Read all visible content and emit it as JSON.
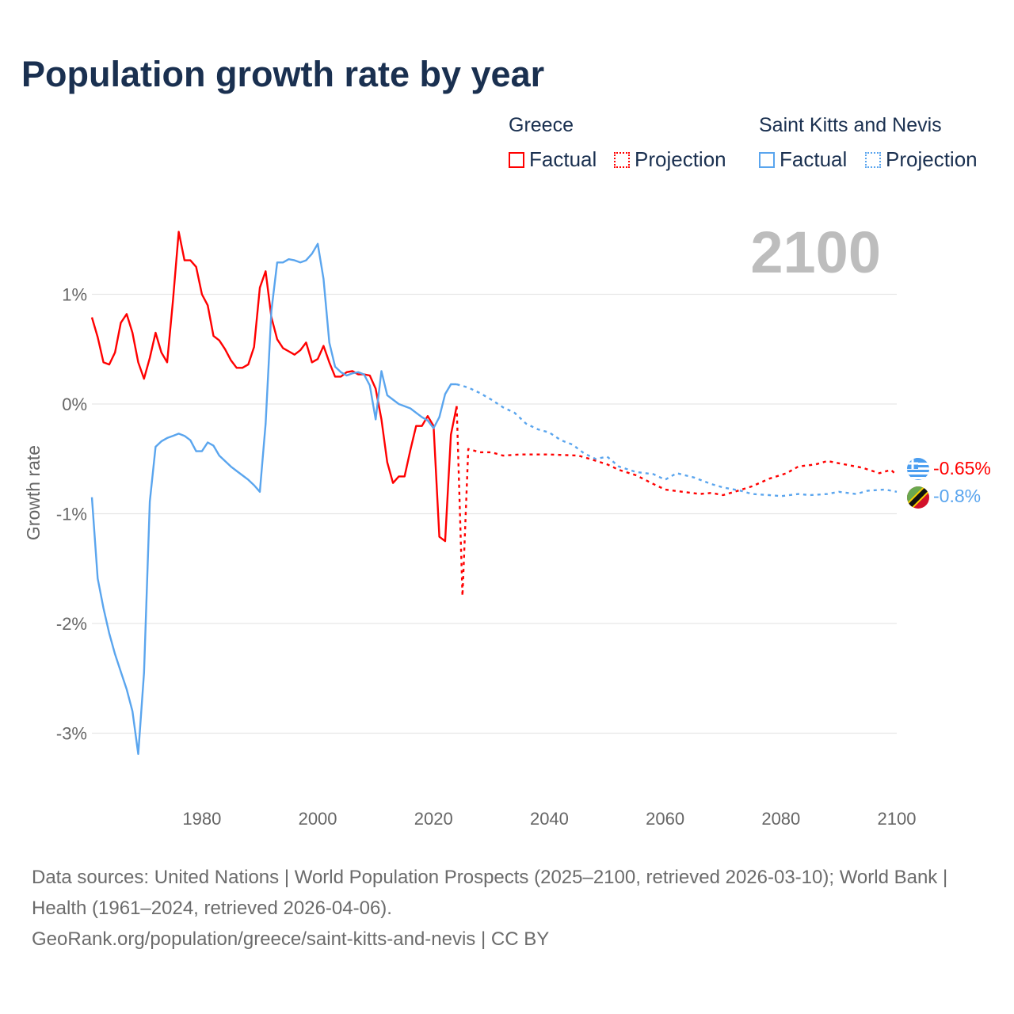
{
  "title": "Population growth rate by year",
  "year_display": "2100",
  "legend": {
    "groups": [
      {
        "country": "Greece",
        "factual": "Factual",
        "projection": "Projection",
        "color": "#ff0000"
      },
      {
        "country": "Saint Kitts and Nevis",
        "factual": "Factual",
        "projection": "Projection",
        "color": "#5aa5ee"
      }
    ]
  },
  "footer": {
    "line1": "Data sources: United Nations | World Population Prospects (2025–2100, retrieved 2026-03-10); World Bank | Health (1961–2024, retrieved 2026-04-06).",
    "line2": "GeoRank.org/population/greece/saint-kitts-and-nevis | CC BY"
  },
  "end_labels": {
    "greece": "-0.65%",
    "skn": "-0.8%"
  },
  "chart_data": {
    "type": "line",
    "title": "Population growth rate by year",
    "xlabel": "",
    "ylabel": "Growth rate",
    "xlim": [
      1961,
      2100
    ],
    "ylim": [
      -3.5,
      1.9
    ],
    "xticks": [
      1980,
      2000,
      2020,
      2040,
      2060,
      2080,
      2100
    ],
    "xtick_labels": [
      "1980",
      "2000",
      "2020",
      "2040",
      "2060",
      "2080",
      "2100"
    ],
    "yticks": [
      1,
      0,
      -1,
      -2,
      -3
    ],
    "ytick_labels": [
      "1%",
      "0%",
      "-1%",
      "-2%",
      "-3%"
    ],
    "grid": true,
    "legend_position": "top-right",
    "series": [
      {
        "name": "Greece Factual",
        "color": "#ff0000",
        "style": "solid",
        "x": [
          1961,
          1962,
          1963,
          1964,
          1965,
          1966,
          1967,
          1968,
          1969,
          1970,
          1971,
          1972,
          1973,
          1974,
          1975,
          1976,
          1977,
          1978,
          1979,
          1980,
          1981,
          1982,
          1983,
          1984,
          1985,
          1986,
          1987,
          1988,
          1989,
          1990,
          1991,
          1992,
          1993,
          1994,
          1995,
          1996,
          1997,
          1998,
          1999,
          2000,
          2001,
          2002,
          2003,
          2004,
          2005,
          2006,
          2007,
          2008,
          2009,
          2010,
          2011,
          2012,
          2013,
          2014,
          2015,
          2016,
          2017,
          2018,
          2019,
          2020,
          2021,
          2022,
          2023,
          2024
        ],
        "values": [
          0.79,
          0.61,
          0.38,
          0.36,
          0.47,
          0.74,
          0.82,
          0.65,
          0.38,
          0.23,
          0.42,
          0.65,
          0.47,
          0.38,
          0.94,
          1.57,
          1.31,
          1.31,
          1.25,
          1.0,
          0.9,
          0.62,
          0.58,
          0.5,
          0.4,
          0.33,
          0.33,
          0.36,
          0.52,
          1.06,
          1.21,
          0.79,
          0.59,
          0.51,
          0.48,
          0.45,
          0.49,
          0.56,
          0.38,
          0.41,
          0.53,
          0.38,
          0.25,
          0.25,
          0.29,
          0.3,
          0.27,
          0.27,
          0.26,
          0.14,
          -0.14,
          -0.53,
          -0.72,
          -0.66,
          -0.66,
          -0.42,
          -0.2,
          -0.2,
          -0.11,
          -0.2,
          -1.21,
          -1.25,
          -0.28,
          -0.02
        ]
      },
      {
        "name": "Greece Projection",
        "color": "#ff0000",
        "style": "dotted",
        "x": [
          2024,
          2025,
          2026,
          2028,
          2030,
          2032,
          2035,
          2040,
          2045,
          2047,
          2050,
          2052,
          2055,
          2058,
          2060,
          2063,
          2066,
          2068,
          2070,
          2072,
          2075,
          2078,
          2081,
          2083,
          2086,
          2088,
          2091,
          2094,
          2097,
          2099,
          2100
        ],
        "values": [
          -0.02,
          -1.75,
          -0.41,
          -0.44,
          -0.44,
          -0.47,
          -0.46,
          -0.46,
          -0.47,
          -0.5,
          -0.55,
          -0.6,
          -0.65,
          -0.73,
          -0.78,
          -0.8,
          -0.82,
          -0.81,
          -0.83,
          -0.8,
          -0.75,
          -0.68,
          -0.63,
          -0.57,
          -0.55,
          -0.52,
          -0.55,
          -0.58,
          -0.63,
          -0.6,
          -0.65
        ]
      },
      {
        "name": "Saint Kitts and Nevis Factual",
        "color": "#5aa5ee",
        "style": "solid",
        "x": [
          1961,
          1962,
          1963,
          1964,
          1965,
          1966,
          1967,
          1968,
          1969,
          1970,
          1971,
          1972,
          1973,
          1974,
          1975,
          1976,
          1977,
          1978,
          1979,
          1980,
          1981,
          1982,
          1983,
          1984,
          1985,
          1986,
          1987,
          1988,
          1989,
          1990,
          1991,
          1992,
          1993,
          1994,
          1995,
          1996,
          1997,
          1998,
          1999,
          2000,
          2001,
          2002,
          2003,
          2004,
          2005,
          2006,
          2007,
          2008,
          2009,
          2010,
          2011,
          2012,
          2013,
          2014,
          2015,
          2016,
          2017,
          2018,
          2019,
          2020,
          2021,
          2022,
          2023,
          2024
        ],
        "values": [
          -0.85,
          -1.59,
          -1.86,
          -2.09,
          -2.28,
          -2.44,
          -2.6,
          -2.8,
          -3.19,
          -2.45,
          -0.89,
          -0.39,
          -0.34,
          -0.31,
          -0.29,
          -0.27,
          -0.29,
          -0.33,
          -0.43,
          -0.43,
          -0.35,
          -0.38,
          -0.47,
          -0.52,
          -0.57,
          -0.61,
          -0.65,
          -0.69,
          -0.74,
          -0.8,
          -0.18,
          0.85,
          1.29,
          1.29,
          1.32,
          1.31,
          1.29,
          1.31,
          1.37,
          1.46,
          1.14,
          0.56,
          0.34,
          0.29,
          0.26,
          0.28,
          0.29,
          0.27,
          0.17,
          -0.14,
          0.3,
          0.08,
          0.04,
          0.0,
          -0.02,
          -0.04,
          -0.08,
          -0.12,
          -0.15,
          -0.22,
          -0.12,
          0.09,
          0.18,
          0.18
        ]
      },
      {
        "name": "Saint Kitts and Nevis Projection",
        "color": "#5aa5ee",
        "style": "dotted",
        "x": [
          2024,
          2026,
          2028,
          2030,
          2032,
          2034,
          2036,
          2038,
          2040,
          2042,
          2044,
          2046,
          2048,
          2050,
          2052,
          2055,
          2058,
          2060,
          2062,
          2065,
          2068,
          2070,
          2073,
          2075,
          2078,
          2080,
          2083,
          2085,
          2088,
          2090,
          2093,
          2095,
          2098,
          2100
        ],
        "values": [
          0.18,
          0.15,
          0.1,
          0.04,
          -0.03,
          -0.08,
          -0.18,
          -0.23,
          -0.26,
          -0.33,
          -0.37,
          -0.45,
          -0.5,
          -0.48,
          -0.57,
          -0.62,
          -0.64,
          -0.69,
          -0.63,
          -0.67,
          -0.73,
          -0.76,
          -0.79,
          -0.82,
          -0.83,
          -0.84,
          -0.82,
          -0.83,
          -0.82,
          -0.8,
          -0.82,
          -0.79,
          -0.78,
          -0.8
        ]
      }
    ]
  }
}
